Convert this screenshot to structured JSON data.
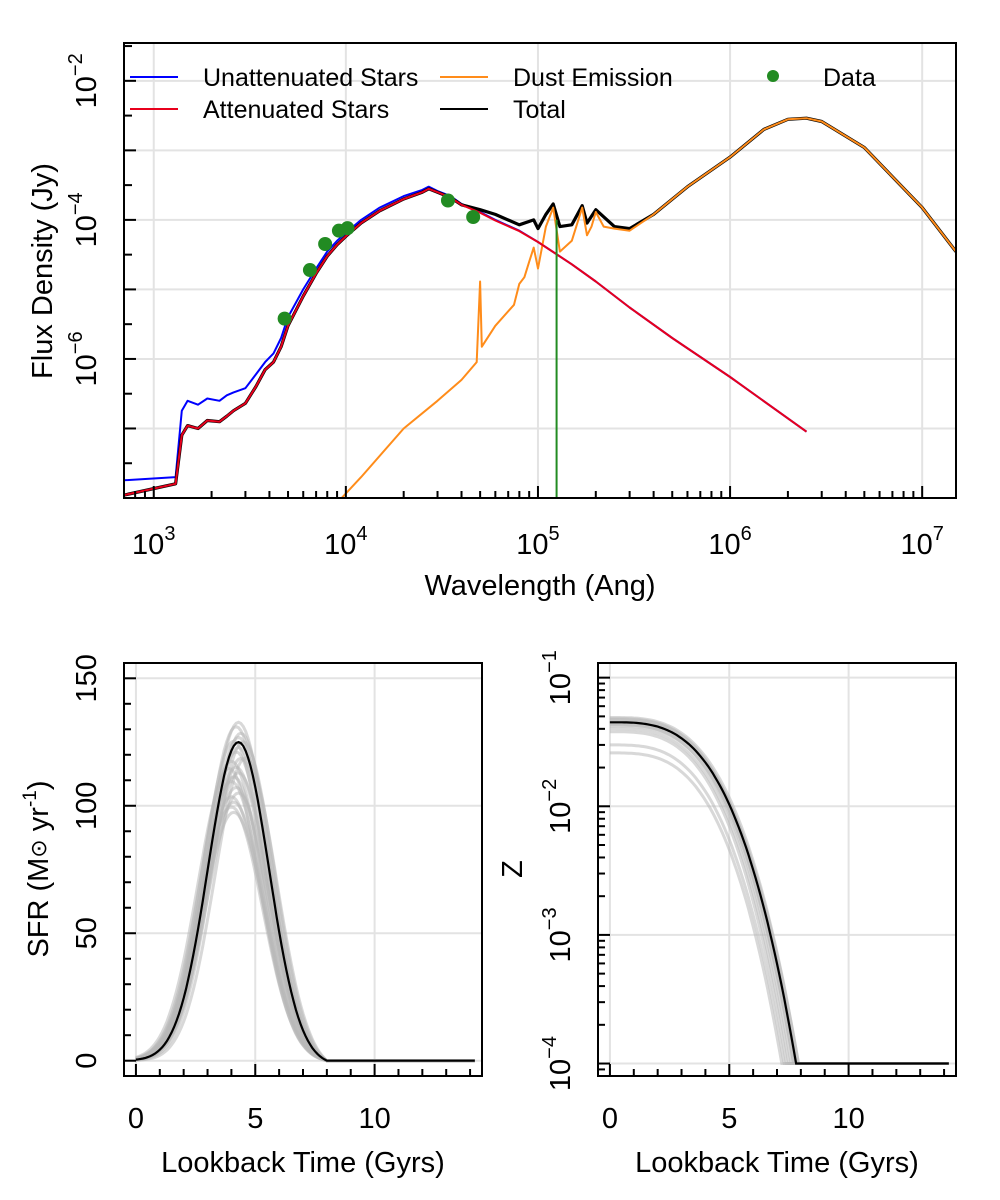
{
  "chart_data": [
    {
      "type": "line",
      "id": "sed",
      "title": "",
      "xlabel": "Wavelength (Ang)",
      "ylabel": "Flux Density (Jy)",
      "xscale": "log",
      "yscale": "log",
      "xlim": [
        700,
        15000000
      ],
      "ylim": [
        1e-08,
        0.035
      ],
      "x_ticks": [
        {
          "base": "10",
          "exp": "3",
          "value": 1000
        },
        {
          "base": "10",
          "exp": "4",
          "value": 10000
        },
        {
          "base": "10",
          "exp": "5",
          "value": 100000
        },
        {
          "base": "10",
          "exp": "6",
          "value": 1000000
        },
        {
          "base": "10",
          "exp": "7",
          "value": 10000000
        }
      ],
      "y_ticks": [
        {
          "base": "10",
          "exp": "−6",
          "value": 1e-06
        },
        {
          "base": "10",
          "exp": "−4",
          "value": 0.0001
        },
        {
          "base": "10",
          "exp": "−2",
          "value": 0.01
        }
      ],
      "grid": true,
      "legend_position": "top",
      "legend": [
        {
          "name": "Unattenuated Stars",
          "color": "#0000ff",
          "kind": "line"
        },
        {
          "name": "Attenuated Stars",
          "color": "#e8001c",
          "kind": "line"
        },
        {
          "name": "Dust Emission",
          "color": "#ff8c1a",
          "kind": "line"
        },
        {
          "name": "Total",
          "color": "#000000",
          "kind": "line"
        },
        {
          "name": "Data",
          "color": "#228b22",
          "kind": "point"
        }
      ],
      "series": [
        {
          "name": "Unattenuated Stars",
          "color": "#0000ff",
          "x": [
            700,
            1300,
            1400,
            1500,
            1700,
            1900,
            2200,
            2400,
            2600,
            3000,
            3400,
            3800,
            4200,
            4600,
            5000,
            6000,
            7000,
            8000,
            9000,
            10000,
            12000,
            15000,
            20000,
            25000,
            27000,
            30000,
            35000,
            40000,
            50000,
            60000,
            80000,
            100000,
            150000,
            200000,
            300000,
            500000,
            1000000,
            2500000
          ],
          "y": [
            1.8e-08,
            2e-08,
            1.8e-07,
            2.5e-07,
            2.2e-07,
            2.7e-07,
            2.5e-07,
            3e-07,
            3.3e-07,
            3.8e-07,
            6e-07,
            9e-07,
            1.2e-06,
            2e-06,
            4e-06,
            1e-05,
            2e-05,
            3.5e-05,
            5e-05,
            6.5e-05,
            0.0001,
            0.00015,
            0.00022,
            0.00027,
            0.0003,
            0.00026,
            0.00022,
            0.00017,
            0.00013,
            0.0001,
            7e-05,
            4.8e-05,
            2.3e-05,
            1.3e-05,
            5.5e-06,
            2e-06,
            5.5e-07,
            9e-08
          ]
        },
        {
          "name": "Attenuated Stars",
          "color": "#e8001c",
          "x": [
            700,
            1300,
            1400,
            1500,
            1700,
            1900,
            2200,
            2400,
            2600,
            3000,
            3400,
            3800,
            4200,
            4600,
            5000,
            6000,
            7000,
            8000,
            9000,
            10000,
            12000,
            15000,
            20000,
            25000,
            27000,
            30000,
            35000,
            40000,
            50000,
            60000,
            80000,
            100000,
            150000,
            200000,
            300000,
            500000,
            1000000,
            2500000
          ],
          "y": [
            1.1e-08,
            1.6e-08,
            8e-08,
            1.1e-07,
            1e-07,
            1.3e-07,
            1.25e-07,
            1.5e-07,
            1.8e-07,
            2.3e-07,
            4e-07,
            7e-07,
            9e-07,
            1.5e-06,
            3e-06,
            8e-06,
            1.7e-05,
            3e-05,
            4.4e-05,
            5.8e-05,
            9e-05,
            0.000135,
            0.0002,
            0.00025,
            0.00028,
            0.00025,
            0.00021,
            0.000165,
            0.000127,
            9.8e-05,
            6.9e-05,
            4.8e-05,
            2.3e-05,
            1.3e-05,
            5.5e-06,
            2e-06,
            5.5e-07,
            9e-08
          ]
        },
        {
          "name": "Dust Emission",
          "color": "#ff8c1a",
          "x": [
            9500,
            12000,
            20000,
            30000,
            40000,
            48000,
            50000,
            51000,
            60000,
            75000,
            80000,
            85000,
            90000,
            95000,
            100000,
            110000,
            120000,
            130000,
            150000,
            170000,
            180000,
            190000,
            200000,
            220000,
            250000,
            300000,
            400000,
            600000,
            1000000,
            1500000,
            2000000,
            2500000,
            3000000,
            5000000,
            10000000,
            15000000
          ],
          "y": [
            1e-08,
            2e-08,
            1e-07,
            2.5e-07,
            5e-07,
            9e-07,
            1.3e-05,
            1.5e-06,
            3e-06,
            6e-06,
            1.2e-05,
            1.5e-05,
            2.5e-05,
            4e-05,
            2e-05,
            8e-05,
            0.00015,
            3.5e-05,
            5e-05,
            0.00015,
            6e-05,
            8e-05,
            0.00013,
            8e-05,
            7.5e-05,
            7e-05,
            0.00012,
            0.0003,
            0.0008,
            0.002,
            0.0028,
            0.0029,
            0.0026,
            0.0011,
            0.00015,
            3.5e-05
          ]
        },
        {
          "name": "Total",
          "color": "#000000",
          "x": [
            700,
            1300,
            1400,
            1500,
            1700,
            1900,
            2200,
            2400,
            2600,
            3000,
            3400,
            3800,
            4200,
            4600,
            5000,
            6000,
            7000,
            8000,
            9000,
            10000,
            12000,
            15000,
            20000,
            25000,
            27000,
            30000,
            35000,
            40000,
            50000,
            60000,
            80000,
            95000,
            100000,
            110000,
            120000,
            130000,
            150000,
            170000,
            180000,
            200000,
            250000,
            300000,
            400000,
            600000,
            1000000,
            1500000,
            2000000,
            2500000,
            3000000,
            5000000,
            10000000,
            15000000
          ],
          "y": [
            1.1e-08,
            1.6e-08,
            8e-08,
            1.1e-07,
            1e-07,
            1.3e-07,
            1.25e-07,
            1.5e-07,
            1.8e-07,
            2.3e-07,
            4e-07,
            7e-07,
            9e-07,
            1.5e-06,
            3e-06,
            8e-06,
            1.7e-05,
            3e-05,
            4.4e-05,
            5.8e-05,
            9e-05,
            0.000135,
            0.0002,
            0.00025,
            0.00028,
            0.00025,
            0.00021,
            0.000165,
            0.00014,
            0.00012,
            8.5e-05,
            0.0001,
            7.5e-05,
            0.00012,
            0.00017,
            8e-05,
            8.5e-05,
            0.00016,
            9e-05,
            0.00014,
            8e-05,
            7.5e-05,
            0.00012,
            0.0003,
            0.0008,
            0.002,
            0.0028,
            0.0029,
            0.0026,
            0.0011,
            0.00015,
            3.5e-05
          ]
        }
      ],
      "points": {
        "name": "Data",
        "color": "#228b22",
        "x": [
          4800,
          6500,
          7800,
          9200,
          10200,
          34000,
          46000
        ],
        "y": [
          3.8e-06,
          1.9e-05,
          4.5e-05,
          7e-05,
          7.6e-05,
          0.00019,
          0.00011
        ]
      },
      "vline": {
        "x": 125000,
        "y_top": 0.0001,
        "color": "#228b22"
      }
    },
    {
      "type": "line",
      "id": "sfr",
      "title": "",
      "xlabel": "Lookback Time (Gyrs)",
      "ylabel_pre": "SFR (M",
      "ylabel_sym": "⊙",
      "ylabel_mid": " yr",
      "ylabel_sup": "-1",
      "ylabel_post": ")",
      "xlim": [
        -0.5,
        14.5
      ],
      "ylim": [
        -6,
        156
      ],
      "x_ticks": [
        "0",
        "5",
        "10"
      ],
      "y_ticks": [
        "0",
        "50",
        "100",
        "150"
      ],
      "grid": true,
      "best_fit": {
        "type": "gaussian",
        "peak": 126,
        "center": 4.3,
        "sigma": 1.28,
        "end": 8.0,
        "color": "#000000"
      },
      "posterior_samples": {
        "color": "#b8b8b8",
        "count": 22,
        "peaks": [
          134,
          132,
          130,
          128,
          126,
          124,
          122,
          120,
          118,
          116,
          114,
          112,
          110,
          108,
          106,
          104,
          102,
          100,
          98,
          127,
          121,
          115
        ],
        "centers": [
          4.3,
          4.2,
          4.4,
          4.3,
          4.1,
          4.3,
          4.2,
          4.4,
          4.0,
          4.2,
          4.3,
          4.1,
          4.0,
          4.2,
          4.3,
          4.0,
          4.1,
          4.0,
          4.1,
          4.5,
          4.6,
          3.9
        ]
      }
    },
    {
      "type": "line",
      "id": "metallicity",
      "title": "",
      "xlabel": "Lookback Time (Gyrs)",
      "ylabel": "Z",
      "yscale": "log",
      "xlim": [
        -0.5,
        14.5
      ],
      "ylim": [
        8e-05,
        0.13
      ],
      "x_ticks": [
        "0",
        "5",
        "10"
      ],
      "y_ticks": [
        {
          "base": "10",
          "exp": "−4",
          "value": 0.0001
        },
        {
          "base": "10",
          "exp": "−3",
          "value": 0.001
        },
        {
          "base": "10",
          "exp": "−2",
          "value": 0.01
        },
        {
          "base": "10",
          "exp": "−1",
          "value": 0.1
        }
      ],
      "grid": true,
      "best_fit": {
        "type": "decline",
        "z0": 0.045,
        "t_drop": 7.8,
        "z_floor": 0.0001,
        "color": "#000000"
      },
      "posterior_samples": {
        "color": "#b8b8b8",
        "z0": [
          0.049,
          0.048,
          0.047,
          0.046,
          0.045,
          0.044,
          0.043,
          0.042,
          0.04,
          0.038,
          0.03,
          0.026
        ],
        "t_drop": [
          7.9,
          7.8,
          7.8,
          7.7,
          7.8,
          7.9,
          7.6,
          7.7,
          7.5,
          7.4,
          7.3,
          7.2
        ]
      }
    }
  ]
}
